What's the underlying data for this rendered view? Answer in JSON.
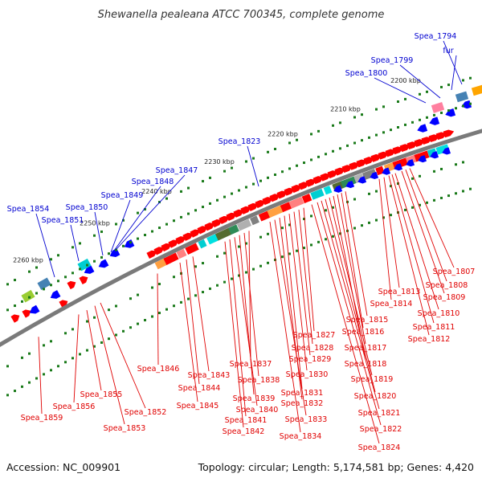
{
  "title": "Shewanella pealeana ATCC 700345, complete genome",
  "footer": {
    "accession": "Accession: NC_009901",
    "summary": "Topology: circular; Length: 5,174,581 bp; Genes: 4,420"
  },
  "colors": {
    "backbone": "#808080",
    "forward_gene": "#ff0000",
    "reverse_gene": "#0000ff",
    "forward_label": "#e00000",
    "reverse_label": "#0000d0",
    "tick": "#1a7a1a"
  },
  "scale_labels": [
    "2200 kbp",
    "2210 kbp",
    "2220 kbp",
    "2230 kbp",
    "2240 kbp",
    "2250 kbp",
    "2260 kbp"
  ],
  "reverse_labels": [
    "Spea_1794",
    "fur",
    "Spea_1799",
    "Spea_1800",
    "Spea_1823",
    "Spea_1847",
    "Spea_1848",
    "Spea_1849",
    "Spea_1850",
    "Spea_1851",
    "Spea_1854"
  ],
  "forward_labels": [
    "Spea_1807",
    "Spea_1808",
    "Spea_1809",
    "Spea_1810",
    "Spea_1811",
    "Spea_1812",
    "Spea_1813",
    "Spea_1814",
    "Spea_1815",
    "Spea_1816",
    "Spea_1817",
    "Spea_1818",
    "Spea_1819",
    "Spea_1820",
    "Spea_1821",
    "Spea_1822",
    "Spea_1824",
    "Spea_1827",
    "Spea_1828",
    "Spea_1829",
    "Spea_1830",
    "Spea_1831",
    "Spea_1832",
    "Spea_1833",
    "Spea_1834",
    "Spea_1837",
    "Spea_1838",
    "Spea_1839",
    "Spea_1840",
    "Spea_1841",
    "Spea_1842",
    "Spea_1843",
    "Spea_1844",
    "Spea_1845",
    "Spea_1846",
    "Spea_1852",
    "Spea_1853",
    "Spea_1855",
    "Spea_1856",
    "Spea_1859"
  ]
}
